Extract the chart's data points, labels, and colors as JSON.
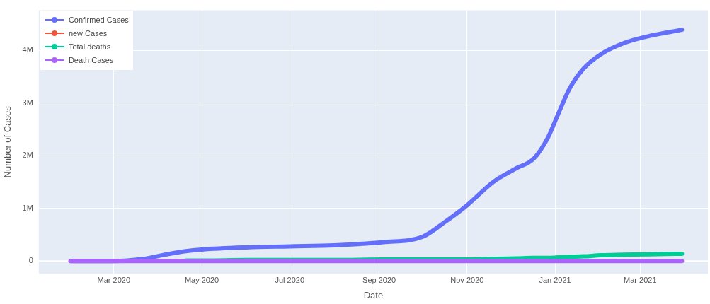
{
  "chart_data": {
    "type": "line",
    "xlabel": "Date",
    "ylabel": "Number of Cases",
    "x": [
      "2020-01-31",
      "2020-02-15",
      "2020-03-01",
      "2020-03-21",
      "2020-04-05",
      "2020-04-20",
      "2020-05-01",
      "2020-06-01",
      "2020-07-01",
      "2020-08-01",
      "2020-09-04",
      "2020-10-01",
      "2020-10-16",
      "2020-11-01",
      "2020-11-19",
      "2020-12-05",
      "2020-12-17",
      "2020-12-27",
      "2021-01-03",
      "2021-01-11",
      "2021-01-21",
      "2021-02-02",
      "2021-02-18",
      "2021-03-07",
      "2021-03-30"
    ],
    "series": [
      {
        "name": "Confirmed Cases",
        "color": "#636efa",
        "values": [
          0,
          0,
          0,
          40000,
          120000,
          190000,
          220000,
          260000,
          280000,
          300000,
          360000,
          460000,
          730000,
          1060000,
          1500000,
          1760000,
          1940000,
          2340000,
          2780000,
          3270000,
          3660000,
          3930000,
          4140000,
          4270000,
          4390000
        ]
      },
      {
        "name": "new Cases",
        "color": "#ef553b",
        "values": [
          null,
          null,
          null,
          null,
          null,
          null,
          null,
          null,
          null,
          null,
          null,
          null,
          null,
          null,
          null,
          null,
          null,
          null,
          null,
          null,
          null,
          null,
          null,
          null,
          null
        ]
      },
      {
        "name": "Total deaths",
        "color": "#00cc96",
        "values": [
          null,
          null,
          null,
          null,
          null,
          10000,
          10000,
          20000,
          20000,
          20000,
          30000,
          30000,
          30000,
          30000,
          40000,
          50000,
          60000,
          60000,
          70000,
          80000,
          90000,
          110000,
          120000,
          130000,
          140000
        ]
      },
      {
        "name": "Death Cases",
        "color": "#ab63fa",
        "values": [
          0,
          0,
          0,
          0,
          0,
          0,
          0,
          0,
          0,
          0,
          0,
          0,
          0,
          0,
          0,
          0,
          0,
          0,
          0,
          0,
          0,
          0,
          0,
          0,
          0
        ]
      }
    ],
    "xlim": [
      "2020-01-09",
      "2021-04-17"
    ],
    "xticks": [
      {
        "value": "2020-03-01",
        "label": "Mar 2020"
      },
      {
        "value": "2020-05-01",
        "label": "May 2020"
      },
      {
        "value": "2020-07-01",
        "label": "Jul 2020"
      },
      {
        "value": "2020-09-01",
        "label": "Sep 2020"
      },
      {
        "value": "2020-11-01",
        "label": "Nov 2020"
      },
      {
        "value": "2021-01-01",
        "label": "Jan 2021"
      },
      {
        "value": "2021-03-01",
        "label": "Mar 2021"
      }
    ],
    "ylim": [
      -240000,
      4760000
    ],
    "yticks": [
      0,
      {
        "value": 1000000,
        "label": "1M"
      },
      {
        "value": 2000000,
        "label": "2M"
      },
      {
        "value": 3000000,
        "label": "3M"
      },
      {
        "value": 4000000,
        "label": "4M"
      }
    ],
    "grid": true,
    "legend": "top left",
    "line_style": "solid"
  }
}
